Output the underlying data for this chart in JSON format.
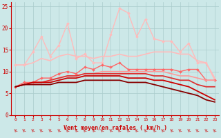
{
  "xlabel": "Vent moyen/en rafales ( km/h )",
  "background_color": "#cce8e8",
  "grid_color": "#aacccc",
  "xlim": [
    -0.5,
    23.5
  ],
  "ylim": [
    0,
    26
  ],
  "yticks": [
    0,
    5,
    10,
    15,
    20,
    25
  ],
  "xticks": [
    0,
    1,
    2,
    3,
    4,
    5,
    6,
    7,
    8,
    9,
    10,
    11,
    12,
    13,
    14,
    15,
    16,
    17,
    18,
    19,
    20,
    21,
    22,
    23
  ],
  "series": [
    {
      "y": [
        11.5,
        11.5,
        14.5,
        18.0,
        13.5,
        16.0,
        21.0,
        13.0,
        14.0,
        12.0,
        12.0,
        18.5,
        24.5,
        23.5,
        18.0,
        22.0,
        17.5,
        17.0,
        17.0,
        14.5,
        16.5,
        12.0,
        12.0,
        8.0
      ],
      "color": "#ffbbbb",
      "lw": 1.0,
      "marker": "D",
      "ms": 2.0
    },
    {
      "y": [
        11.5,
        11.5,
        12.0,
        13.0,
        12.5,
        13.5,
        14.0,
        13.5,
        13.5,
        13.0,
        13.5,
        13.5,
        14.0,
        13.5,
        13.5,
        14.0,
        14.5,
        14.5,
        14.5,
        14.0,
        14.0,
        12.5,
        12.0,
        8.5
      ],
      "color": "#ffbbbb",
      "lw": 1.2,
      "marker": null,
      "ms": 0
    },
    {
      "y": [
        6.5,
        7.5,
        7.5,
        8.5,
        8.5,
        9.5,
        10.0,
        9.5,
        11.0,
        10.5,
        11.5,
        11.0,
        12.0,
        10.5,
        10.5,
        10.5,
        10.5,
        10.5,
        10.5,
        10.0,
        10.5,
        10.5,
        8.0,
        8.0
      ],
      "color": "#ff6666",
      "lw": 1.0,
      "marker": "D",
      "ms": 2.0
    },
    {
      "y": [
        6.5,
        7.0,
        7.5,
        7.5,
        8.0,
        8.5,
        9.0,
        9.0,
        9.5,
        9.5,
        10.0,
        10.0,
        10.0,
        10.0,
        10.0,
        10.0,
        10.0,
        10.0,
        9.5,
        9.0,
        9.0,
        8.5,
        8.0,
        8.0
      ],
      "color": "#ff9999",
      "lw": 1.2,
      "marker": null,
      "ms": 0
    },
    {
      "y": [
        6.5,
        7.0,
        7.5,
        7.5,
        8.0,
        8.5,
        9.0,
        9.0,
        9.5,
        9.5,
        9.5,
        9.5,
        9.5,
        9.5,
        9.5,
        9.5,
        9.0,
        9.0,
        8.5,
        8.0,
        8.0,
        7.0,
        6.5,
        6.5
      ],
      "color": "#dd3333",
      "lw": 1.3,
      "marker": null,
      "ms": 0
    },
    {
      "y": [
        6.5,
        7.0,
        7.5,
        7.5,
        7.5,
        8.0,
        8.5,
        8.5,
        9.0,
        9.0,
        9.0,
        9.0,
        9.0,
        8.5,
        8.5,
        8.5,
        8.0,
        8.0,
        7.5,
        7.0,
        6.5,
        5.5,
        4.5,
        3.5
      ],
      "color": "#cc0000",
      "lw": 1.3,
      "marker": null,
      "ms": 0
    },
    {
      "y": [
        6.5,
        7.0,
        7.0,
        7.0,
        7.0,
        7.5,
        7.5,
        7.5,
        8.0,
        8.0,
        8.0,
        8.0,
        8.0,
        7.5,
        7.5,
        7.5,
        7.0,
        6.5,
        6.0,
        5.5,
        5.0,
        4.5,
        3.5,
        3.0
      ],
      "color": "#880000",
      "lw": 1.3,
      "marker": null,
      "ms": 0
    }
  ]
}
